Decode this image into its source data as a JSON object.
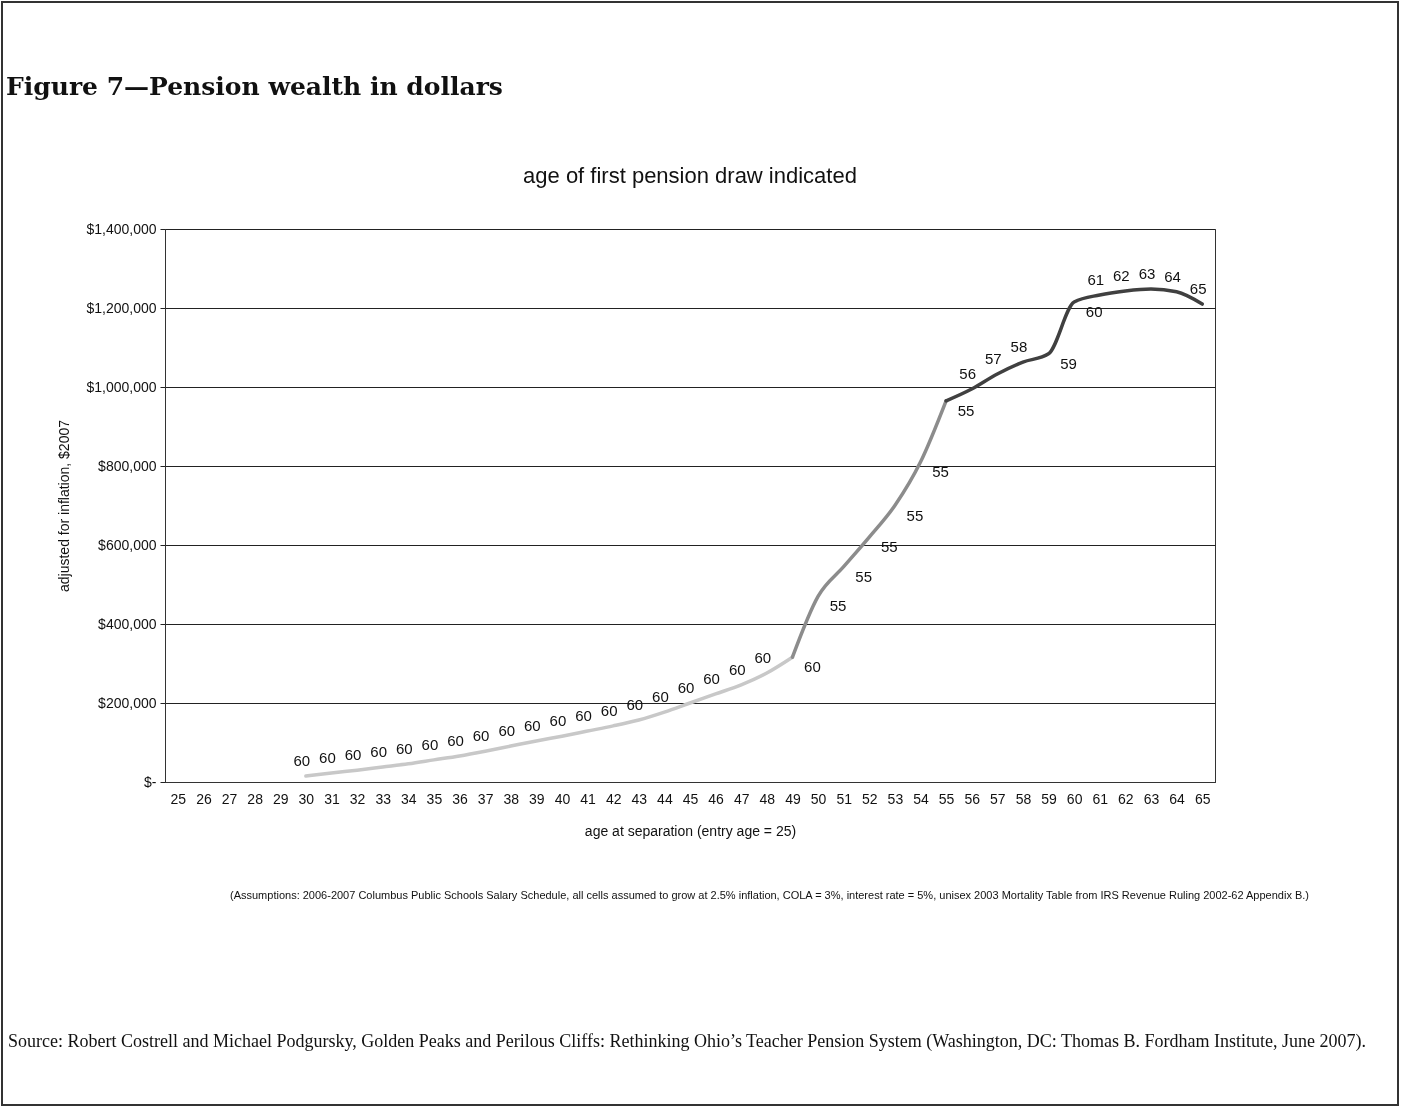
{
  "chart_data": {
    "type": "line",
    "title": "Figure 7—Pension wealth in dollars",
    "subtitle": "age of first pension draw indicated",
    "xlabel": "age at separation (entry age = 25)",
    "ylabel": "adjusted for inflation, $2007",
    "categories": [
      "25",
      "26",
      "27",
      "28",
      "29",
      "30",
      "31",
      "32",
      "33",
      "34",
      "35",
      "36",
      "37",
      "38",
      "39",
      "40",
      "41",
      "42",
      "43",
      "44",
      "45",
      "46",
      "47",
      "48",
      "49",
      "50",
      "51",
      "52",
      "53",
      "54",
      "55",
      "56",
      "57",
      "58",
      "59",
      "60",
      "61",
      "62",
      "63",
      "64",
      "65"
    ],
    "series": [
      {
        "color": "#c8c8c8",
        "values": [
          null,
          null,
          null,
          null,
          null,
          15000,
          23000,
          30000,
          38000,
          46000,
          56000,
          66000,
          78000,
          91000,
          104000,
          116000,
          129000,
          142000,
          157000,
          177000,
          200000,
          223000,
          246000,
          276000,
          316000,
          null,
          null,
          null,
          null,
          null,
          null,
          null,
          null,
          null,
          null,
          null,
          null,
          null,
          null,
          null,
          null
        ]
      },
      {
        "color": "#8c8c8c",
        "values": [
          null,
          null,
          null,
          null,
          null,
          null,
          null,
          null,
          null,
          null,
          null,
          null,
          null,
          null,
          null,
          null,
          null,
          null,
          null,
          null,
          null,
          null,
          null,
          null,
          316000,
          470000,
          545000,
          620000,
          700000,
          810000,
          965000,
          null,
          null,
          null,
          null,
          null,
          null,
          null,
          null,
          null,
          null
        ]
      },
      {
        "color": "#404040",
        "values": [
          null,
          null,
          null,
          null,
          null,
          null,
          null,
          null,
          null,
          null,
          null,
          null,
          null,
          null,
          null,
          null,
          null,
          null,
          null,
          null,
          null,
          null,
          null,
          null,
          null,
          null,
          null,
          null,
          null,
          null,
          965000,
          995000,
          1033000,
          1063000,
          1084000,
          1215000,
          1233000,
          1243000,
          1248000,
          1241000,
          1210000
        ]
      }
    ],
    "ylim": [
      0,
      1400000
    ],
    "yticks": [
      {
        "value": 0,
        "label": "$-"
      },
      {
        "value": 200000,
        "label": "$200,000"
      },
      {
        "value": 400000,
        "label": "$400,000"
      },
      {
        "value": 600000,
        "label": "$600,000"
      },
      {
        "value": 800000,
        "label": "$800,000"
      },
      {
        "value": 1000000,
        "label": "$1,000,000"
      },
      {
        "value": 1200000,
        "label": "$1,200,000"
      },
      {
        "value": 1400000,
        "label": "$1,400,000"
      }
    ],
    "grid": "y",
    "annotations": [
      "(Assumptions: 2006-2007 Columbus Public Schools Salary Schedule, all cells assumed to grow at 2.5% inflation, COLA = 3%, interest rate = 5%, unisex 2003 Mortality Table from IRS Revenue Ruling 2002-62 Appendix B.)",
      "Source:  Robert Costrell and Michael Podgursky, Golden Peaks and Perilous Cliffs: Rethinking Ohio’s Teacher Pension System (Washington, DC: Thomas B. Fordham Institute, June 2007).",
      {
        "text": "60",
        "x": "30",
        "y": 15000
      },
      {
        "text": "60",
        "x": "31",
        "y": 23000
      },
      {
        "text": "60",
        "x": "32",
        "y": 30000
      },
      {
        "text": "60",
        "x": "33",
        "y": 38000
      },
      {
        "text": "60",
        "x": "34",
        "y": 46000
      },
      {
        "text": "60",
        "x": "35",
        "y": 56000
      },
      {
        "text": "60",
        "x": "36",
        "y": 66000
      },
      {
        "text": "60",
        "x": "37",
        "y": 78000
      },
      {
        "text": "60",
        "x": "38",
        "y": 91000
      },
      {
        "text": "60",
        "x": "39",
        "y": 104000
      },
      {
        "text": "60",
        "x": "40",
        "y": 116000
      },
      {
        "text": "60",
        "x": "41",
        "y": 129000
      },
      {
        "text": "60",
        "x": "42",
        "y": 142000
      },
      {
        "text": "60",
        "x": "43",
        "y": 157000
      },
      {
        "text": "60",
        "x": "44",
        "y": 177000
      },
      {
        "text": "60",
        "x": "45",
        "y": 200000
      },
      {
        "text": "60",
        "x": "46",
        "y": 223000
      },
      {
        "text": "60",
        "x": "47",
        "y": 246000
      },
      {
        "text": "60",
        "x": "48",
        "y": 276000
      },
      {
        "text": "60",
        "x": "49",
        "y": 316000
      },
      {
        "text": "55",
        "x": "50",
        "y": 470000
      },
      {
        "text": "55",
        "x": "51",
        "y": 545000
      },
      {
        "text": "55",
        "x": "52",
        "y": 620000
      },
      {
        "text": "55",
        "x": "53",
        "y": 700000
      },
      {
        "text": "55",
        "x": "54",
        "y": 810000
      },
      {
        "text": "55",
        "x": "55",
        "y": 965000
      },
      {
        "text": "56",
        "x": "56",
        "y": 995000
      },
      {
        "text": "57",
        "x": "57",
        "y": 1033000
      },
      {
        "text": "58",
        "x": "58",
        "y": 1063000
      },
      {
        "text": "59",
        "x": "59",
        "y": 1084000
      },
      {
        "text": "60",
        "x": "60",
        "y": 1215000
      },
      {
        "text": "61",
        "x": "61",
        "y": 1233000
      },
      {
        "text": "62",
        "x": "62",
        "y": 1243000
      },
      {
        "text": "63",
        "x": "63",
        "y": 1248000
      },
      {
        "text": "64",
        "x": "64",
        "y": 1241000
      },
      {
        "text": "65",
        "x": "65",
        "y": 1210000
      }
    ]
  }
}
